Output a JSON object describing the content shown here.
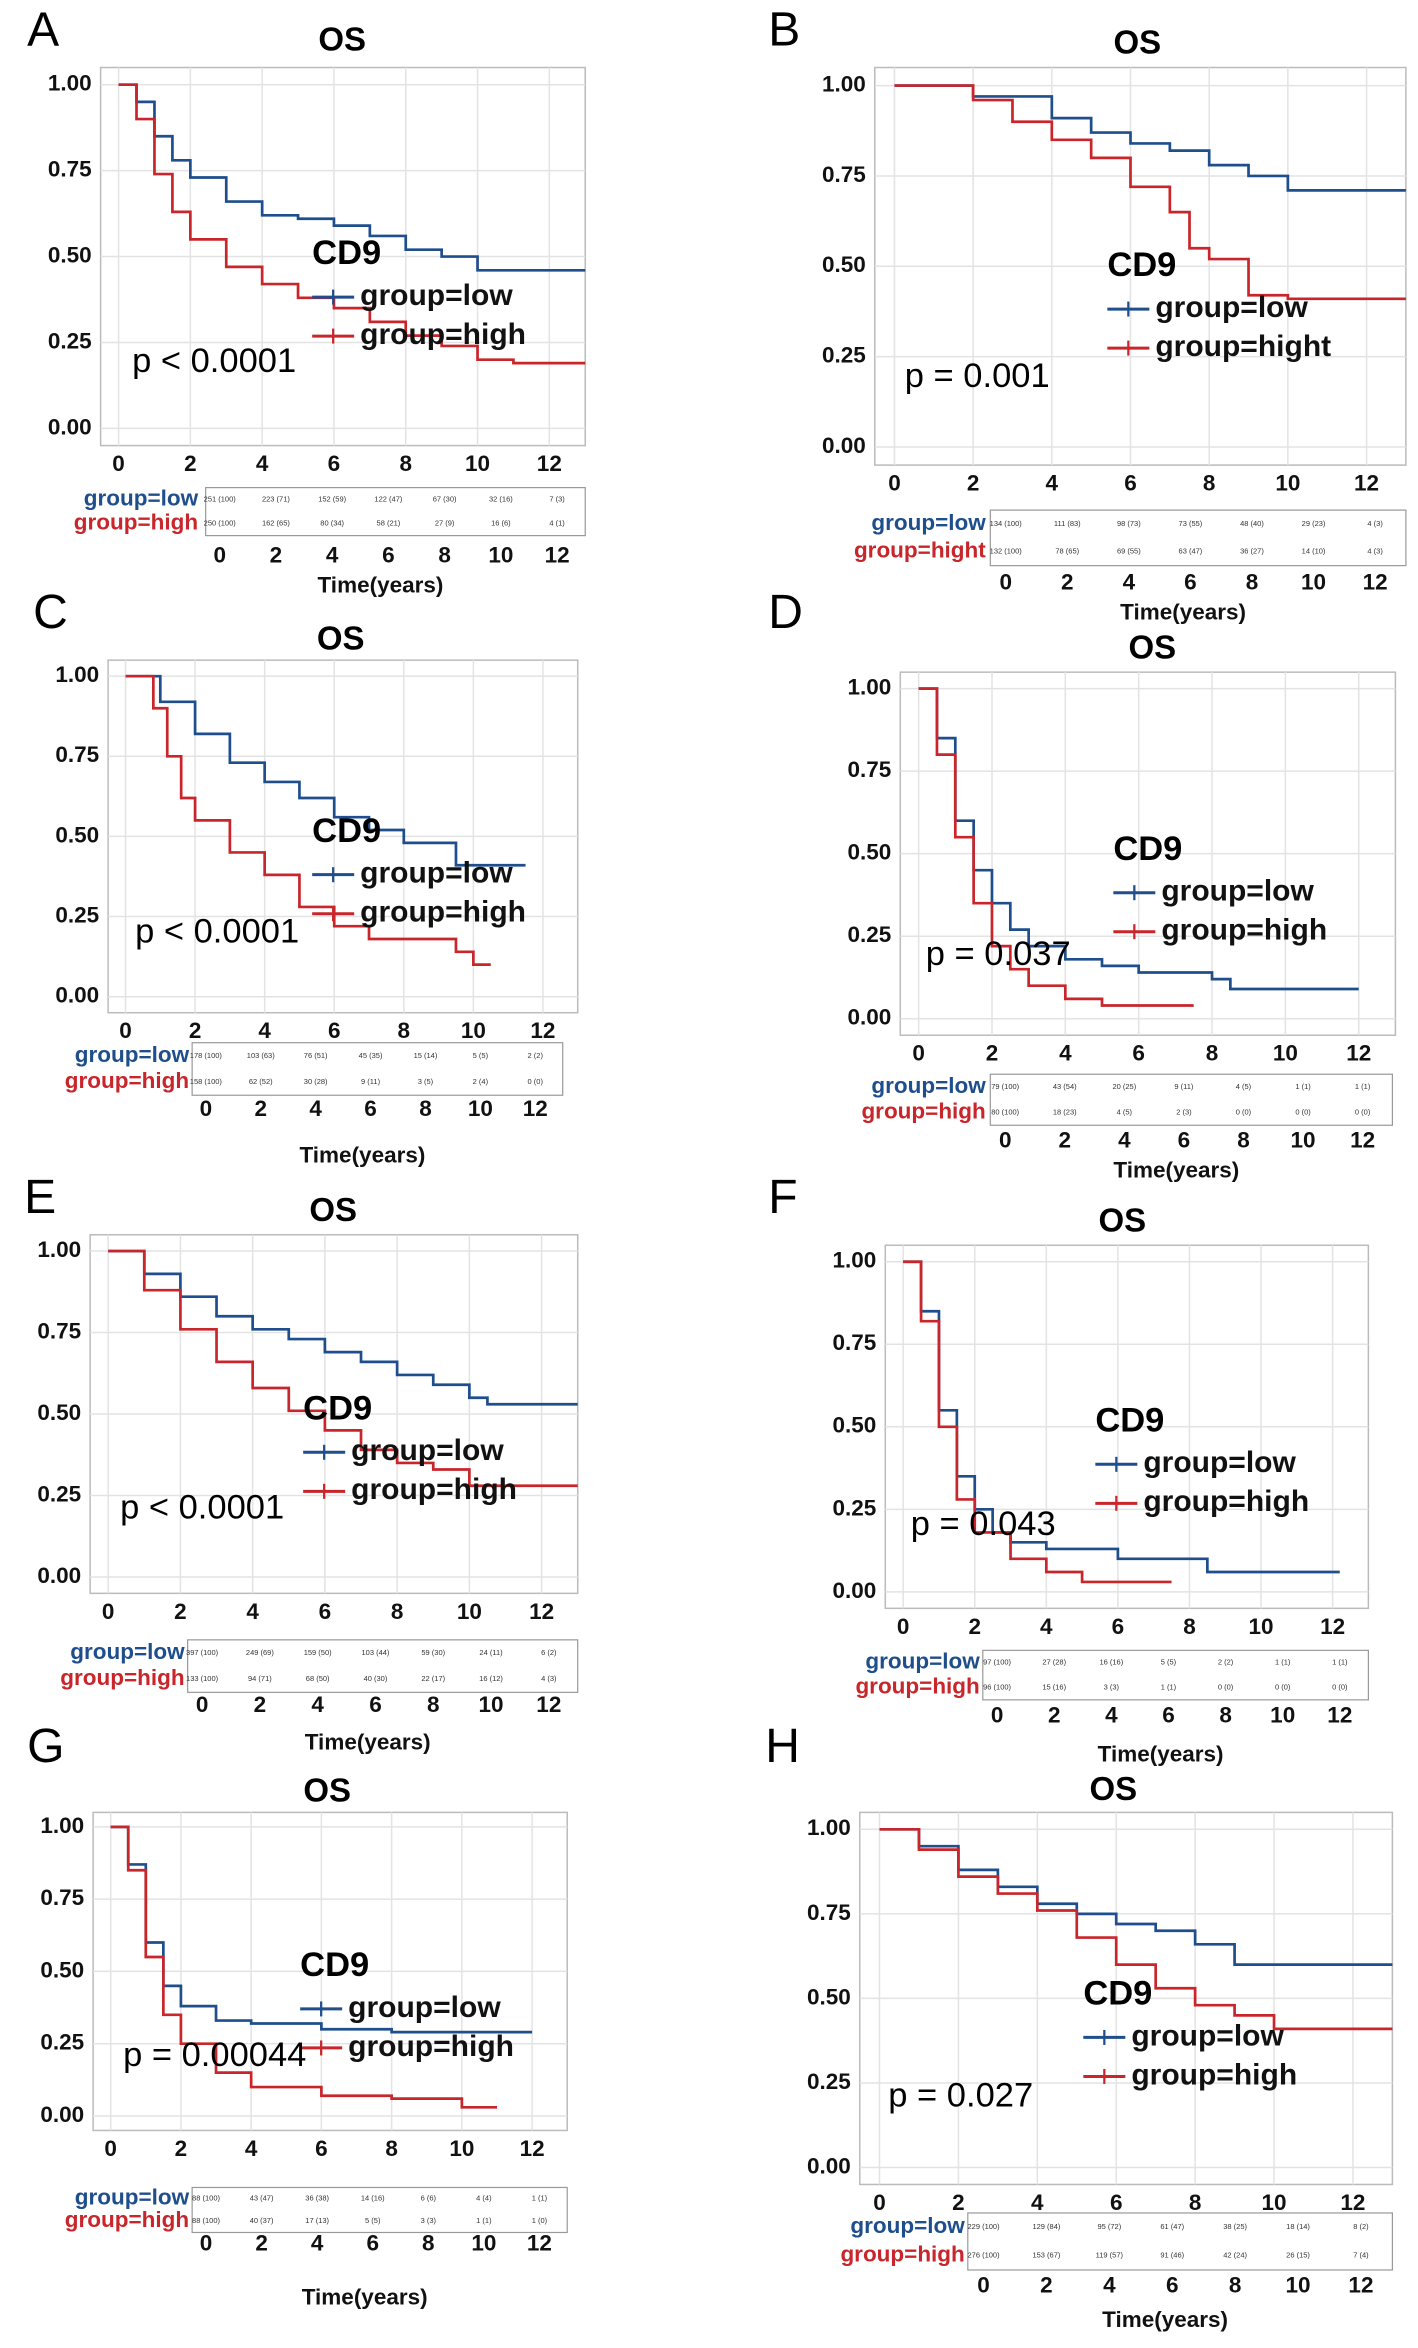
{
  "chart_data": [
    {
      "type": "line",
      "panel": "A",
      "title": "OS",
      "legend_title": "CD9",
      "annotation": "p < 0.0001",
      "x_label": "Time(years)",
      "xlim": [
        -0.5,
        13
      ],
      "ylim": [
        -0.05,
        1.05
      ],
      "xticks": [
        0,
        2,
        4,
        6,
        8,
        10,
        12
      ],
      "yticks": [
        {
          "value": 0,
          "label": "0.00"
        },
        {
          "value": 0.25,
          "label": "0.25"
        },
        {
          "value": 0.5,
          "label": "0.50"
        },
        {
          "value": 0.75,
          "label": "0.75"
        },
        {
          "value": 1,
          "label": "1.00"
        }
      ],
      "series": [
        {
          "name": "group=low",
          "color": "#1f4e8c",
          "x": [
            0,
            0.5,
            1,
            1.5,
            2,
            3,
            4,
            5,
            6,
            7,
            8,
            9,
            10,
            13
          ],
          "values": [
            1,
            0.95,
            0.85,
            0.78,
            0.73,
            0.66,
            0.62,
            0.61,
            0.59,
            0.56,
            0.52,
            0.5,
            0.46,
            0.46
          ],
          "risk": [
            "251 (100)",
            "223 (71)",
            "152 (59)",
            "122 (47)",
            "67 (30)",
            "32 (16)",
            "7 (3)"
          ]
        },
        {
          "name": "group=high",
          "color": "#c8262b",
          "x": [
            0,
            0.5,
            1,
            1.5,
            2,
            3,
            4,
            5,
            6,
            7,
            8,
            9,
            10,
            11,
            13
          ],
          "values": [
            1,
            0.9,
            0.74,
            0.63,
            0.55,
            0.47,
            0.42,
            0.38,
            0.35,
            0.31,
            0.27,
            0.24,
            0.2,
            0.19,
            0.19
          ],
          "risk": [
            "250 (100)",
            "162 (65)",
            "80 (34)",
            "58 (21)",
            "27 (9)",
            "16 (6)",
            "4 (1)"
          ]
        }
      ]
    },
    {
      "type": "line",
      "panel": "B",
      "title": "OS",
      "legend_title": "CD9",
      "annotation": "p = 0.001",
      "x_label": "Time(years)",
      "xlim": [
        -0.5,
        13
      ],
      "ylim": [
        -0.05,
        1.05
      ],
      "xticks": [
        0,
        2,
        4,
        6,
        8,
        10,
        12
      ],
      "yticks": [
        {
          "value": 0,
          "label": "0.00"
        },
        {
          "value": 0.25,
          "label": "0.25"
        },
        {
          "value": 0.5,
          "label": "0.50"
        },
        {
          "value": 0.75,
          "label": "0.75"
        },
        {
          "value": 1,
          "label": "1.00"
        }
      ],
      "series": [
        {
          "name": "group=low",
          "color": "#1f4e8c",
          "x": [
            0,
            2,
            4,
            5,
            6,
            7,
            8,
            9,
            10,
            13
          ],
          "values": [
            1,
            0.97,
            0.91,
            0.87,
            0.84,
            0.82,
            0.78,
            0.75,
            0.71,
            0.71
          ],
          "risk": [
            "134 (100)",
            "111 (83)",
            "98 (73)",
            "73 (55)",
            "48 (40)",
            "29 (23)",
            "4 (3)"
          ]
        },
        {
          "name": "group=hight",
          "color": "#c8262b",
          "x": [
            0,
            2,
            3,
            4,
            5,
            6,
            7,
            7.5,
            8,
            9,
            10,
            13
          ],
          "values": [
            1,
            0.96,
            0.9,
            0.85,
            0.8,
            0.72,
            0.65,
            0.55,
            0.52,
            0.42,
            0.41,
            0.41
          ],
          "risk": [
            "132 (100)",
            "78 (65)",
            "69 (55)",
            "63 (47)",
            "36 (27)",
            "14 (10)",
            "4 (3)"
          ]
        }
      ]
    },
    {
      "type": "line",
      "panel": "C",
      "title": "OS",
      "legend_title": "CD9",
      "annotation": "p < 0.0001",
      "x_label": "Time(years)",
      "xlim": [
        -0.5,
        13
      ],
      "ylim": [
        -0.05,
        1.05
      ],
      "xticks": [
        0,
        2,
        4,
        6,
        8,
        10,
        12
      ],
      "yticks": [
        {
          "value": 0,
          "label": "0.00"
        },
        {
          "value": 0.25,
          "label": "0.25"
        },
        {
          "value": 0.5,
          "label": "0.50"
        },
        {
          "value": 0.75,
          "label": "0.75"
        },
        {
          "value": 1,
          "label": "1.00"
        }
      ],
      "series": [
        {
          "name": "group=low",
          "color": "#1f4e8c",
          "x": [
            0,
            1,
            2,
            3,
            4,
            5,
            6,
            7,
            8,
            9,
            9.5,
            11.5
          ],
          "values": [
            1,
            0.92,
            0.82,
            0.73,
            0.67,
            0.62,
            0.56,
            0.52,
            0.48,
            0.48,
            0.41,
            0.41
          ],
          "risk": [
            "178 (100)",
            "103 (63)",
            "76 (51)",
            "45 (35)",
            "15 (14)",
            "5 (5)",
            "2 (2)"
          ]
        },
        {
          "name": "group=high",
          "color": "#c8262b",
          "x": [
            0,
            0.8,
            1.2,
            1.6,
            2,
            3,
            4,
            5,
            6,
            7,
            8.5,
            9.5,
            10,
            10.5
          ],
          "values": [
            1,
            0.9,
            0.75,
            0.62,
            0.55,
            0.45,
            0.38,
            0.28,
            0.22,
            0.18,
            0.18,
            0.14,
            0.1,
            0.1
          ],
          "risk": [
            "158 (100)",
            "62 (52)",
            "30 (28)",
            "9 (11)",
            "3 (5)",
            "2 (4)",
            "0 (0)"
          ]
        }
      ]
    },
    {
      "type": "line",
      "panel": "D",
      "title": "OS",
      "legend_title": "CD9",
      "annotation": "p = 0.037",
      "x_label": "Time(years)",
      "xlim": [
        -0.5,
        13
      ],
      "ylim": [
        -0.05,
        1.05
      ],
      "xticks": [
        0,
        2,
        4,
        6,
        8,
        10,
        12
      ],
      "yticks": [
        {
          "value": 0,
          "label": "0.00"
        },
        {
          "value": 0.25,
          "label": "0.25"
        },
        {
          "value": 0.5,
          "label": "0.50"
        },
        {
          "value": 0.75,
          "label": "0.75"
        },
        {
          "value": 1,
          "label": "1.00"
        }
      ],
      "series": [
        {
          "name": "group=low",
          "color": "#1f4e8c",
          "x": [
            0,
            0.5,
            1,
            1.5,
            2,
            2.5,
            3,
            4,
            5,
            6,
            8,
            8.5,
            12
          ],
          "values": [
            1,
            0.85,
            0.6,
            0.45,
            0.35,
            0.27,
            0.22,
            0.18,
            0.16,
            0.14,
            0.12,
            0.09,
            0.09
          ],
          "risk": [
            "79 (100)",
            "43 (54)",
            "20 (25)",
            "9 (11)",
            "4 (5)",
            "1 (1)",
            "1 (1)"
          ]
        },
        {
          "name": "group=high",
          "color": "#c8262b",
          "x": [
            0,
            0.5,
            1,
            1.5,
            2,
            2.5,
            3,
            4,
            5,
            7.5
          ],
          "values": [
            1,
            0.8,
            0.55,
            0.35,
            0.22,
            0.15,
            0.1,
            0.06,
            0.04,
            0.04
          ],
          "risk": [
            "80 (100)",
            "18 (23)",
            "4 (5)",
            "2 (3)",
            "0 (0)",
            "0 (0)",
            "0 (0)"
          ]
        }
      ]
    },
    {
      "type": "line",
      "panel": "E",
      "title": "OS",
      "legend_title": "CD9",
      "annotation": "p < 0.0001",
      "x_label": "Time(years)",
      "xlim": [
        -0.5,
        13
      ],
      "ylim": [
        -0.05,
        1.05
      ],
      "xticks": [
        0,
        2,
        4,
        6,
        8,
        10,
        12
      ],
      "yticks": [
        {
          "value": 0,
          "label": "0.00"
        },
        {
          "value": 0.25,
          "label": "0.25"
        },
        {
          "value": 0.5,
          "label": "0.50"
        },
        {
          "value": 0.75,
          "label": "0.75"
        },
        {
          "value": 1,
          "label": "1.00"
        }
      ],
      "series": [
        {
          "name": "group=low",
          "color": "#1f4e8c",
          "x": [
            0,
            1,
            2,
            3,
            4,
            5,
            6,
            7,
            8,
            9,
            10,
            10.5,
            13
          ],
          "values": [
            1,
            0.93,
            0.86,
            0.8,
            0.76,
            0.73,
            0.69,
            0.66,
            0.62,
            0.59,
            0.55,
            0.53,
            0.53
          ],
          "risk": [
            "397 (100)",
            "249 (69)",
            "159 (50)",
            "103 (44)",
            "59 (30)",
            "24 (11)",
            "6 (2)"
          ]
        },
        {
          "name": "group=high",
          "color": "#c8262b",
          "x": [
            0,
            1,
            2,
            3,
            4,
            5,
            6,
            7,
            8,
            9,
            10,
            13
          ],
          "values": [
            1,
            0.88,
            0.76,
            0.66,
            0.58,
            0.51,
            0.45,
            0.39,
            0.35,
            0.33,
            0.28,
            0.28
          ],
          "risk": [
            "133 (100)",
            "94 (71)",
            "68 (50)",
            "40 (30)",
            "22 (17)",
            "16 (12)",
            "4 (3)"
          ]
        }
      ]
    },
    {
      "type": "line",
      "panel": "F",
      "title": "OS",
      "legend_title": "CD9",
      "annotation": "p = 0.043",
      "x_label": "Time(years)",
      "xlim": [
        -0.5,
        13
      ],
      "ylim": [
        -0.05,
        1.05
      ],
      "xticks": [
        0,
        2,
        4,
        6,
        8,
        10,
        12
      ],
      "yticks": [
        {
          "value": 0,
          "label": "0.00"
        },
        {
          "value": 0.25,
          "label": "0.25"
        },
        {
          "value": 0.5,
          "label": "0.50"
        },
        {
          "value": 0.75,
          "label": "0.75"
        },
        {
          "value": 1,
          "label": "1.00"
        }
      ],
      "series": [
        {
          "name": "group=low",
          "color": "#1f4e8c",
          "x": [
            0,
            0.5,
            1,
            1.5,
            2,
            2.5,
            3,
            4,
            6,
            8.5,
            12.2
          ],
          "values": [
            1,
            0.85,
            0.55,
            0.35,
            0.25,
            0.18,
            0.15,
            0.13,
            0.1,
            0.06,
            0.06
          ],
          "risk": [
            "97 (100)",
            "27 (28)",
            "16 (16)",
            "5 (5)",
            "2 (2)",
            "1 (1)",
            "1 (1)"
          ]
        },
        {
          "name": "group=high",
          "color": "#c8262b",
          "x": [
            0,
            0.5,
            1,
            1.5,
            2,
            3,
            4,
            5,
            7.5
          ],
          "values": [
            1,
            0.82,
            0.5,
            0.28,
            0.18,
            0.1,
            0.06,
            0.03,
            0.03
          ],
          "risk": [
            "96 (100)",
            "15 (16)",
            "3 (3)",
            "1 (1)",
            "0 (0)",
            "0 (0)",
            "0 (0)"
          ]
        }
      ]
    },
    {
      "type": "line",
      "panel": "G",
      "title": "OS",
      "legend_title": "CD9",
      "annotation": "p = 0.00044",
      "x_label": "Time(years)",
      "xlim": [
        -0.5,
        13
      ],
      "ylim": [
        -0.05,
        1.05
      ],
      "xticks": [
        0,
        2,
        4,
        6,
        8,
        10,
        12
      ],
      "yticks": [
        {
          "value": 0,
          "label": "0.00"
        },
        {
          "value": 0.25,
          "label": "0.25"
        },
        {
          "value": 0.5,
          "label": "0.50"
        },
        {
          "value": 0.75,
          "label": "0.75"
        },
        {
          "value": 1,
          "label": "1.00"
        }
      ],
      "series": [
        {
          "name": "group=low",
          "color": "#1f4e8c",
          "x": [
            0,
            0.5,
            1,
            1.5,
            2,
            3,
            4,
            6,
            8,
            12
          ],
          "values": [
            1,
            0.87,
            0.6,
            0.45,
            0.38,
            0.33,
            0.32,
            0.3,
            0.29,
            0.29
          ],
          "risk": [
            "88 (100)",
            "43 (47)",
            "36 (38)",
            "14 (16)",
            "6 (6)",
            "4 (4)",
            "1 (1)"
          ]
        },
        {
          "name": "group=high",
          "color": "#c8262b",
          "x": [
            0,
            0.5,
            1,
            1.5,
            2,
            3,
            4,
            6,
            8,
            10,
            11
          ],
          "values": [
            1,
            0.85,
            0.55,
            0.35,
            0.25,
            0.15,
            0.1,
            0.07,
            0.06,
            0.03,
            0.03
          ],
          "risk": [
            "88 (100)",
            "40 (37)",
            "17 (13)",
            "5 (5)",
            "3 (3)",
            "1 (1)",
            "1 (0)"
          ]
        }
      ]
    },
    {
      "type": "line",
      "panel": "H",
      "title": "OS",
      "legend_title": "CD9",
      "annotation": "p = 0.027",
      "x_label": "Time(years)",
      "xlim": [
        -0.5,
        13
      ],
      "ylim": [
        -0.05,
        1.05
      ],
      "xticks": [
        0,
        2,
        4,
        6,
        8,
        10,
        12
      ],
      "yticks": [
        {
          "value": 0,
          "label": "0.00"
        },
        {
          "value": 0.25,
          "label": "0.25"
        },
        {
          "value": 0.5,
          "label": "0.50"
        },
        {
          "value": 0.75,
          "label": "0.75"
        },
        {
          "value": 1,
          "label": "1.00"
        }
      ],
      "series": [
        {
          "name": "group=low",
          "color": "#1f4e8c",
          "x": [
            0,
            1,
            2,
            3,
            4,
            5,
            6,
            7,
            8,
            9,
            13
          ],
          "values": [
            1,
            0.95,
            0.88,
            0.83,
            0.78,
            0.75,
            0.72,
            0.7,
            0.66,
            0.6,
            0.6
          ],
          "risk": [
            "229 (100)",
            "129 (84)",
            "95 (72)",
            "61 (47)",
            "38 (25)",
            "18 (14)",
            "8 (2)"
          ]
        },
        {
          "name": "group=high",
          "color": "#c8262b",
          "x": [
            0,
            1,
            2,
            3,
            4,
            5,
            6,
            7,
            8,
            9,
            10,
            13
          ],
          "values": [
            1,
            0.94,
            0.86,
            0.81,
            0.76,
            0.68,
            0.6,
            0.53,
            0.48,
            0.45,
            0.41,
            0.41
          ],
          "risk": [
            "276 (100)",
            "153 (67)",
            "119 (57)",
            "91 (46)",
            "42 (24)",
            "26 (15)",
            "7 (4)"
          ]
        }
      ]
    }
  ]
}
